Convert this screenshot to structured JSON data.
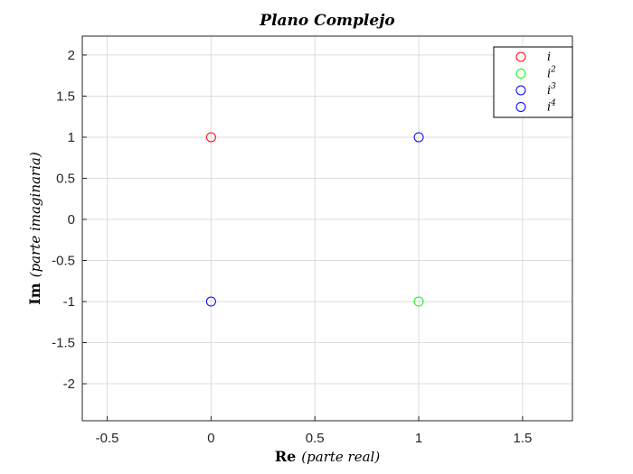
{
  "chart_data": {
    "type": "scatter",
    "title": "Plano Complejo",
    "xlabel": {
      "bold": "Re",
      "italic": "(parte real)"
    },
    "ylabel": {
      "bold": "Im",
      "italic": "(parte imaginaria)"
    },
    "xlim": [
      -0.62,
      1.74
    ],
    "ylim": [
      -2.45,
      2.23
    ],
    "xticks": [
      -0.5,
      0,
      0.5,
      1,
      1.5
    ],
    "xtick_labels": [
      "-0.5",
      "0",
      "0.5",
      "1",
      "1.5"
    ],
    "yticks": [
      2,
      1.5,
      1,
      0.5,
      0,
      -0.5,
      -1,
      -1.5,
      -2
    ],
    "ytick_labels": [
      "2",
      "1.5",
      "1",
      "0.5",
      "0",
      "-0.5",
      "-1",
      "-1.5",
      "-2"
    ],
    "grid": true,
    "legend_position": "top-right",
    "series": [
      {
        "name": "i",
        "sup": "",
        "color": "#ff0000",
        "points": [
          {
            "x": 0,
            "y": 1
          }
        ]
      },
      {
        "name": "i",
        "sup": "2",
        "color": "#00ff00",
        "points": [
          {
            "x": 1,
            "y": -1
          }
        ]
      },
      {
        "name": "i",
        "sup": "3",
        "color": "#0000ff",
        "points": [
          {
            "x": 0,
            "y": -1
          }
        ]
      },
      {
        "name": "i",
        "sup": "4",
        "color": "#0000ff",
        "points": [
          {
            "x": 1,
            "y": 1
          }
        ]
      }
    ]
  }
}
